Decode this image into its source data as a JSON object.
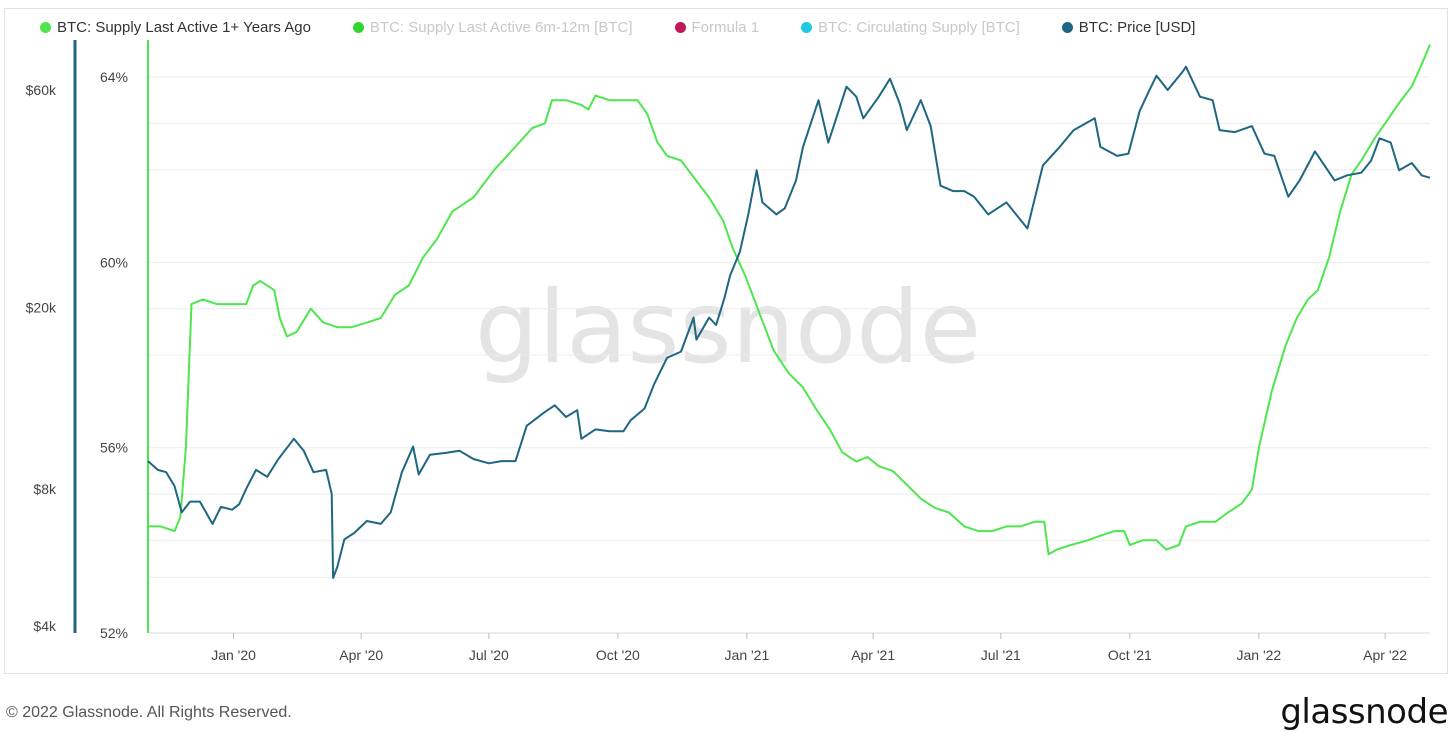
{
  "legend": [
    {
      "label": "BTC: Supply Last Active 1+ Years Ago",
      "color": "#4ee64e",
      "active": true
    },
    {
      "label": "BTC: Supply Last Active 6m-12m [BTC]",
      "color": "#2fd62f",
      "active": false
    },
    {
      "label": "Formula 1",
      "color": "#c2185b",
      "active": false
    },
    {
      "label": "BTC: Circulating Supply [BTC]",
      "color": "#1ec8e6",
      "active": false
    },
    {
      "label": "BTC: Price [USD]",
      "color": "#1f6680",
      "active": true
    }
  ],
  "watermark": "glassnode",
  "footer": {
    "copyright": "© 2022 Glassnode. All Rights Reserved.",
    "logo": "glassnode"
  },
  "chart_data": {
    "type": "line",
    "x_ticks": [
      "Jan '20",
      "Apr '20",
      "Jul '20",
      "Oct '20",
      "Jan '21",
      "Apr '21",
      "Jul '21",
      "Oct '21",
      "Jan '22",
      "Apr '22"
    ],
    "x_tick_dates": [
      "2020-01-01",
      "2020-04-01",
      "2020-07-01",
      "2020-10-01",
      "2021-01-01",
      "2021-04-01",
      "2021-07-01",
      "2021-10-01",
      "2022-01-01",
      "2022-04-01"
    ],
    "x_range": [
      "2019-11-01",
      "2022-05-03"
    ],
    "y_left": {
      "ticks": [
        "$4k",
        "$8k",
        "$20k",
        "$60k"
      ],
      "values": [
        4000,
        8000,
        20000,
        60000
      ],
      "scale": "log"
    },
    "y_right": {
      "ticks": [
        "52%",
        "56%",
        "60%",
        "64%"
      ],
      "values": [
        52,
        56,
        60,
        64
      ],
      "range": [
        52,
        64.8
      ]
    },
    "series": [
      {
        "name": "BTC: Supply Last Active 1+ Years Ago",
        "axis": "right",
        "color": "#4ee64e",
        "points": [
          [
            "2019-11-01",
            40.0
          ],
          [
            "2019-11-01",
            54.3
          ],
          [
            "2019-11-10",
            54.3
          ],
          [
            "2019-11-20",
            54.2
          ],
          [
            "2019-11-24",
            54.5
          ],
          [
            "2019-11-28",
            56.0
          ],
          [
            "2019-12-02",
            59.1
          ],
          [
            "2019-12-10",
            59.2
          ],
          [
            "2019-12-20",
            59.1
          ],
          [
            "2019-12-31",
            59.1
          ],
          [
            "2020-01-10",
            59.1
          ],
          [
            "2020-01-15",
            59.5
          ],
          [
            "2020-01-20",
            59.6
          ],
          [
            "2020-01-30",
            59.4
          ],
          [
            "2020-02-03",
            58.8
          ],
          [
            "2020-02-08",
            58.4
          ],
          [
            "2020-02-15",
            58.5
          ],
          [
            "2020-02-25",
            59.0
          ],
          [
            "2020-03-05",
            58.7
          ],
          [
            "2020-03-15",
            58.6
          ],
          [
            "2020-03-25",
            58.6
          ],
          [
            "2020-04-05",
            58.7
          ],
          [
            "2020-04-15",
            58.8
          ],
          [
            "2020-04-25",
            59.3
          ],
          [
            "2020-05-05",
            59.5
          ],
          [
            "2020-05-15",
            60.1
          ],
          [
            "2020-05-25",
            60.5
          ],
          [
            "2020-06-05",
            61.1
          ],
          [
            "2020-06-20",
            61.4
          ],
          [
            "2020-07-05",
            62.0
          ],
          [
            "2020-07-20",
            62.5
          ],
          [
            "2020-08-01",
            62.9
          ],
          [
            "2020-08-10",
            63.0
          ],
          [
            "2020-08-15",
            63.5
          ],
          [
            "2020-08-25",
            63.5
          ],
          [
            "2020-09-05",
            63.4
          ],
          [
            "2020-09-10",
            63.3
          ],
          [
            "2020-09-15",
            63.6
          ],
          [
            "2020-09-25",
            63.5
          ],
          [
            "2020-10-05",
            63.5
          ],
          [
            "2020-10-15",
            63.5
          ],
          [
            "2020-10-22",
            63.2
          ],
          [
            "2020-10-29",
            62.6
          ],
          [
            "2020-11-05",
            62.3
          ],
          [
            "2020-11-15",
            62.2
          ],
          [
            "2020-11-25",
            61.8
          ],
          [
            "2020-12-05",
            61.4
          ],
          [
            "2020-12-15",
            60.9
          ],
          [
            "2020-12-22",
            60.3
          ],
          [
            "2020-12-31",
            59.7
          ],
          [
            "2021-01-10",
            58.9
          ],
          [
            "2021-01-20",
            58.1
          ],
          [
            "2021-01-31",
            57.6
          ],
          [
            "2021-02-10",
            57.3
          ],
          [
            "2021-02-20",
            56.8
          ],
          [
            "2021-03-01",
            56.4
          ],
          [
            "2021-03-10",
            55.9
          ],
          [
            "2021-03-20",
            55.7
          ],
          [
            "2021-03-28",
            55.8
          ],
          [
            "2021-04-05",
            55.6
          ],
          [
            "2021-04-15",
            55.5
          ],
          [
            "2021-04-25",
            55.2
          ],
          [
            "2021-05-05",
            54.9
          ],
          [
            "2021-05-15",
            54.7
          ],
          [
            "2021-05-25",
            54.6
          ],
          [
            "2021-06-05",
            54.3
          ],
          [
            "2021-06-15",
            54.2
          ],
          [
            "2021-06-25",
            54.2
          ],
          [
            "2021-07-05",
            54.3
          ],
          [
            "2021-07-15",
            54.3
          ],
          [
            "2021-07-25",
            54.4
          ],
          [
            "2021-08-01",
            54.4
          ],
          [
            "2021-08-04",
            53.7
          ],
          [
            "2021-08-10",
            53.8
          ],
          [
            "2021-08-20",
            53.9
          ],
          [
            "2021-09-01",
            54.0
          ],
          [
            "2021-09-10",
            54.1
          ],
          [
            "2021-09-20",
            54.2
          ],
          [
            "2021-09-27",
            54.2
          ],
          [
            "2021-10-01",
            53.9
          ],
          [
            "2021-10-10",
            54.0
          ],
          [
            "2021-10-20",
            54.0
          ],
          [
            "2021-10-27",
            53.8
          ],
          [
            "2021-11-05",
            53.9
          ],
          [
            "2021-11-10",
            54.3
          ],
          [
            "2021-11-20",
            54.4
          ],
          [
            "2021-12-01",
            54.4
          ],
          [
            "2021-12-10",
            54.6
          ],
          [
            "2021-12-20",
            54.8
          ],
          [
            "2021-12-27",
            55.1
          ],
          [
            "2022-01-01",
            56.0
          ],
          [
            "2022-01-10",
            57.2
          ],
          [
            "2022-01-20",
            58.2
          ],
          [
            "2022-01-28",
            58.8
          ],
          [
            "2022-02-05",
            59.2
          ],
          [
            "2022-02-12",
            59.4
          ],
          [
            "2022-02-20",
            60.1
          ],
          [
            "2022-02-28",
            61.1
          ],
          [
            "2022-03-08",
            61.9
          ],
          [
            "2022-03-15",
            62.2
          ],
          [
            "2022-03-25",
            62.7
          ],
          [
            "2022-04-01",
            63.0
          ],
          [
            "2022-04-10",
            63.4
          ],
          [
            "2022-04-20",
            63.8
          ],
          [
            "2022-04-26",
            64.2
          ],
          [
            "2022-05-03",
            64.7
          ]
        ]
      },
      {
        "name": "BTC: Price [USD]",
        "axis": "left",
        "color": "#1f6680",
        "points": [
          [
            "2019-11-01",
            9200
          ],
          [
            "2019-11-08",
            8800
          ],
          [
            "2019-11-14",
            8700
          ],
          [
            "2019-11-20",
            8100
          ],
          [
            "2019-11-25",
            7100
          ],
          [
            "2019-12-01",
            7500
          ],
          [
            "2019-12-08",
            7500
          ],
          [
            "2019-12-17",
            6700
          ],
          [
            "2019-12-23",
            7300
          ],
          [
            "2019-12-31",
            7200
          ],
          [
            "2020-01-05",
            7400
          ],
          [
            "2020-01-10",
            8000
          ],
          [
            "2020-01-17",
            8800
          ],
          [
            "2020-01-25",
            8500
          ],
          [
            "2020-02-02",
            9300
          ],
          [
            "2020-02-13",
            10300
          ],
          [
            "2020-02-20",
            9700
          ],
          [
            "2020-02-27",
            8700
          ],
          [
            "2020-03-07",
            8800
          ],
          [
            "2020-03-11",
            7800
          ],
          [
            "2020-03-12",
            5100
          ],
          [
            "2020-03-15",
            5400
          ],
          [
            "2020-03-20",
            6200
          ],
          [
            "2020-03-27",
            6400
          ],
          [
            "2020-04-05",
            6800
          ],
          [
            "2020-04-15",
            6700
          ],
          [
            "2020-04-22",
            7100
          ],
          [
            "2020-04-30",
            8700
          ],
          [
            "2020-05-08",
            9900
          ],
          [
            "2020-05-12",
            8600
          ],
          [
            "2020-05-20",
            9500
          ],
          [
            "2020-06-01",
            9600
          ],
          [
            "2020-06-10",
            9700
          ],
          [
            "2020-06-20",
            9300
          ],
          [
            "2020-07-01",
            9100
          ],
          [
            "2020-07-10",
            9200
          ],
          [
            "2020-07-20",
            9200
          ],
          [
            "2020-07-28",
            11000
          ],
          [
            "2020-08-10",
            11800
          ],
          [
            "2020-08-17",
            12200
          ],
          [
            "2020-08-25",
            11500
          ],
          [
            "2020-09-02",
            11900
          ],
          [
            "2020-09-05",
            10300
          ],
          [
            "2020-09-15",
            10800
          ],
          [
            "2020-09-25",
            10700
          ],
          [
            "2020-10-05",
            10700
          ],
          [
            "2020-10-10",
            11300
          ],
          [
            "2020-10-20",
            12000
          ],
          [
            "2020-10-27",
            13600
          ],
          [
            "2020-11-05",
            15500
          ],
          [
            "2020-11-15",
            16000
          ],
          [
            "2020-11-24",
            19000
          ],
          [
            "2020-11-26",
            17000
          ],
          [
            "2020-12-05",
            19000
          ],
          [
            "2020-12-10",
            18300
          ],
          [
            "2020-12-16",
            21000
          ],
          [
            "2020-12-20",
            23500
          ],
          [
            "2020-12-27",
            26500
          ],
          [
            "2021-01-02",
            32000
          ],
          [
            "2021-01-08",
            40000
          ],
          [
            "2021-01-12",
            34000
          ],
          [
            "2021-01-22",
            32000
          ],
          [
            "2021-01-28",
            33000
          ],
          [
            "2021-02-05",
            38000
          ],
          [
            "2021-02-10",
            45000
          ],
          [
            "2021-02-21",
            57000
          ],
          [
            "2021-02-28",
            46000
          ],
          [
            "2021-03-13",
            61000
          ],
          [
            "2021-03-20",
            58000
          ],
          [
            "2021-03-25",
            52000
          ],
          [
            "2021-04-05",
            58000
          ],
          [
            "2021-04-13",
            63500
          ],
          [
            "2021-04-20",
            56000
          ],
          [
            "2021-04-25",
            49000
          ],
          [
            "2021-05-05",
            57000
          ],
          [
            "2021-05-12",
            50000
          ],
          [
            "2021-05-19",
            37000
          ],
          [
            "2021-05-28",
            36000
          ],
          [
            "2021-06-05",
            36000
          ],
          [
            "2021-06-12",
            35000
          ],
          [
            "2021-06-22",
            32000
          ],
          [
            "2021-07-05",
            34000
          ],
          [
            "2021-07-20",
            29800
          ],
          [
            "2021-07-31",
            41000
          ],
          [
            "2021-08-12",
            45000
          ],
          [
            "2021-08-22",
            49000
          ],
          [
            "2021-09-06",
            52000
          ],
          [
            "2021-09-10",
            45000
          ],
          [
            "2021-09-22",
            43000
          ],
          [
            "2021-09-30",
            43500
          ],
          [
            "2021-10-08",
            54000
          ],
          [
            "2021-10-15",
            60000
          ],
          [
            "2021-10-20",
            64500
          ],
          [
            "2021-10-28",
            60000
          ],
          [
            "2021-11-08",
            66000
          ],
          [
            "2021-11-10",
            67500
          ],
          [
            "2021-11-20",
            58000
          ],
          [
            "2021-11-29",
            57000
          ],
          [
            "2021-12-04",
            49000
          ],
          [
            "2021-12-15",
            48500
          ],
          [
            "2021-12-27",
            50000
          ],
          [
            "2022-01-05",
            43500
          ],
          [
            "2022-01-12",
            43000
          ],
          [
            "2022-01-22",
            35000
          ],
          [
            "2022-01-30",
            38000
          ],
          [
            "2022-02-10",
            44000
          ],
          [
            "2022-02-24",
            38000
          ],
          [
            "2022-03-05",
            39000
          ],
          [
            "2022-03-15",
            39500
          ],
          [
            "2022-03-22",
            42000
          ],
          [
            "2022-03-28",
            47000
          ],
          [
            "2022-04-05",
            46000
          ],
          [
            "2022-04-11",
            40000
          ],
          [
            "2022-04-20",
            41500
          ],
          [
            "2022-04-27",
            39000
          ],
          [
            "2022-05-03",
            38500
          ]
        ]
      }
    ]
  }
}
